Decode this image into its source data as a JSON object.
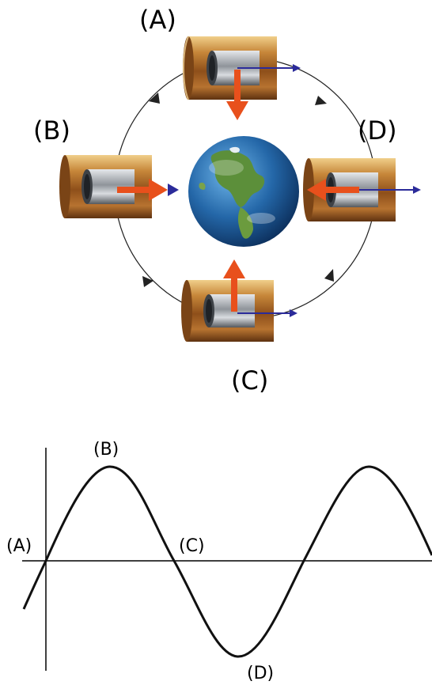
{
  "diagram": {
    "labels": {
      "a": "(A)",
      "b": "(B)",
      "c": "(C)",
      "d": "(D)"
    },
    "colors": {
      "force_arrow": "#e8501c",
      "velocity_arrow": "#2b2b9a",
      "orbit": "#222222",
      "copper": "#b5722c",
      "steel": "#8d9196"
    }
  },
  "graph": {
    "labels": {
      "a": "(A)",
      "b": "(B)",
      "c": "(C)",
      "d": "(D)"
    }
  }
}
